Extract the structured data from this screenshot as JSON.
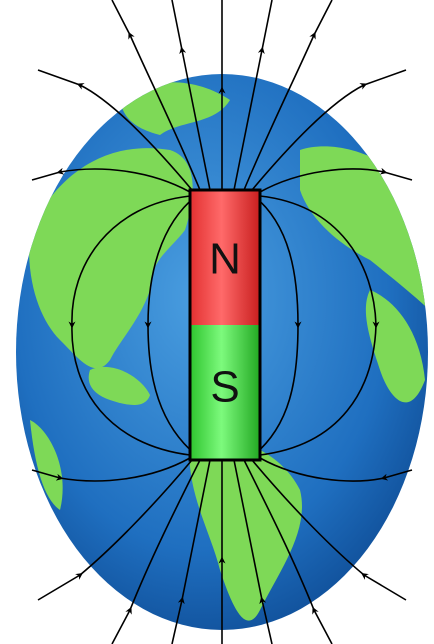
{
  "magnet": {
    "north_label": "N",
    "south_label": "S"
  }
}
